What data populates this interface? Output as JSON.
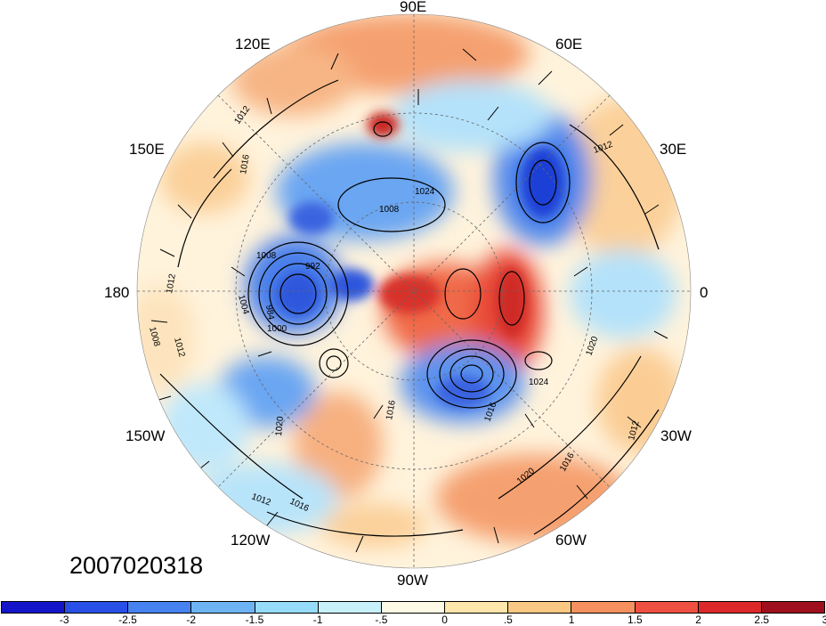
{
  "timestamp": "2007020318",
  "longitude_labels": {
    "lon_90e": "90E",
    "lon_60e": "60E",
    "lon_30e": "30E",
    "lon_0": "0",
    "lon_30w": "30W",
    "lon_60w": "60W",
    "lon_90w": "90W",
    "lon_120w": "120W",
    "lon_150w": "150W",
    "lon_180": "180",
    "lon_150e": "150E",
    "lon_120e": "120E"
  },
  "contour_labels": [
    "1012",
    "1016",
    "1024",
    "1008",
    "1008",
    "992",
    "1004",
    "1000",
    "984",
    "1012",
    "1008",
    "1012",
    "1020",
    "1024",
    "1016",
    "1012",
    "1020",
    "1016",
    "1016",
    "1012",
    "1020",
    "1016",
    "1012"
  ],
  "colorbar": {
    "colors": [
      "#1414c8",
      "#2850e6",
      "#4682f0",
      "#6eb4f5",
      "#96dcfa",
      "#c8f0fa",
      "#fffae6",
      "#ffe6aa",
      "#fac882",
      "#f5915f",
      "#f05041",
      "#dc2828",
      "#a00f1e"
    ],
    "tick_labels": [
      "-3",
      "-2.5",
      "-2",
      "-1.5",
      "-1",
      "-.5",
      "0",
      ".5",
      "1",
      "1.5",
      "2",
      "2.5",
      "3"
    ]
  },
  "colors": {
    "negative_strong": "#1f3fd6",
    "negative_mid": "#5a98ef",
    "negative_light": "#b4e4fa",
    "neutral": "#fff7e0",
    "positive_light": "#fbd9a0",
    "positive_mid": "#f28c5e",
    "positive_strong": "#d7302b"
  }
}
